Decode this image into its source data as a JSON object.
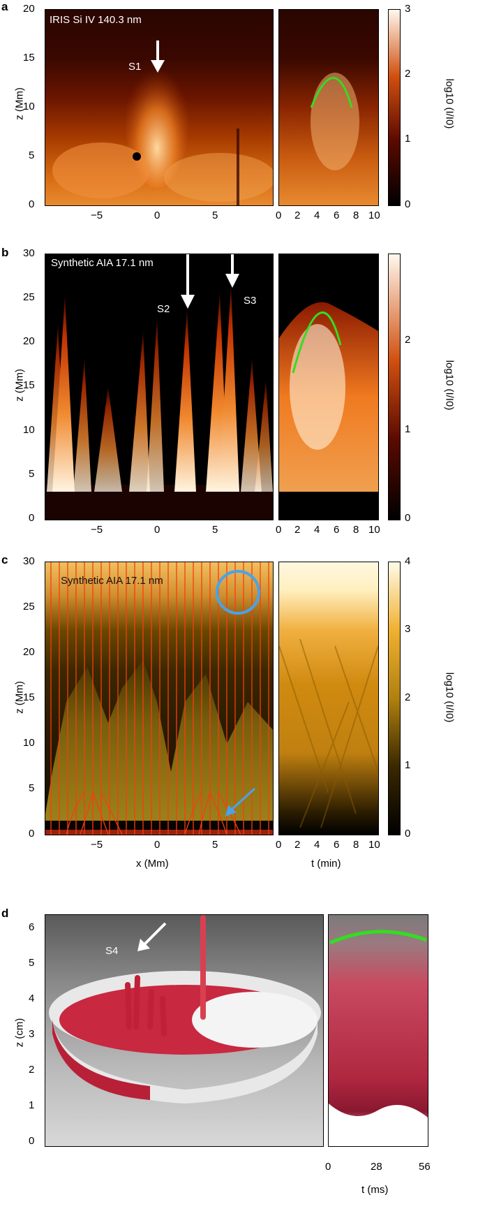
{
  "panels": {
    "a": {
      "letter": "a",
      "instrument_label": "IRIS Si IV 140.3 nm",
      "structure_label": "S1",
      "z_ticks": [
        "0",
        "5",
        "10",
        "15",
        "20"
      ],
      "x_ticks": [
        "−5",
        "0",
        "5"
      ],
      "t_ticks": [
        "0",
        "2",
        "4",
        "6",
        "8",
        "10"
      ],
      "cbar_ticks": [
        "0",
        "1",
        "2",
        "3"
      ],
      "ylabel": "z (Mm)",
      "cbar_label": "log10 (I/I0)"
    },
    "b": {
      "letter": "b",
      "instrument_label": "Synthetic AIA 17.1 nm",
      "structure_labels": [
        "S2",
        "S3"
      ],
      "z_ticks": [
        "0",
        "5",
        "10",
        "15",
        "20",
        "25",
        "30"
      ],
      "x_ticks": [
        "−5",
        "0",
        "5"
      ],
      "t_ticks": [
        "0",
        "2",
        "4",
        "6",
        "8",
        "10"
      ],
      "cbar_ticks": [
        "0",
        "1",
        "2"
      ],
      "ylabel": "z (Mm)",
      "cbar_label": "log10 (I/I0)"
    },
    "c": {
      "letter": "c",
      "instrument_label": "Synthetic AIA 17.1 nm",
      "z_ticks": [
        "0",
        "5",
        "10",
        "15",
        "20",
        "25",
        "30"
      ],
      "x_ticks": [
        "−5",
        "0",
        "5"
      ],
      "t_ticks": [
        "0",
        "2",
        "4",
        "6",
        "8",
        "10"
      ],
      "cbar_ticks": [
        "0",
        "1",
        "2",
        "3",
        "4"
      ],
      "ylabel": "z (Mm)",
      "xlabel": "x (Mm)",
      "tlabel": "t (min)",
      "cbar_label": "log10 (I/I0)"
    },
    "d": {
      "letter": "d",
      "structure_label": "S4",
      "z_ticks": [
        "0",
        "1",
        "2",
        "3",
        "4",
        "5",
        "6"
      ],
      "t_ticks": [
        "0",
        "28",
        "56"
      ],
      "ylabel": "z (cm)",
      "tlabel": "t (ms)"
    }
  },
  "colors": {
    "green_fit": "#33dd22",
    "blue_marker": "#4aa3e8",
    "arrow": "#ffffff",
    "field_lines": "#ff3a10"
  }
}
